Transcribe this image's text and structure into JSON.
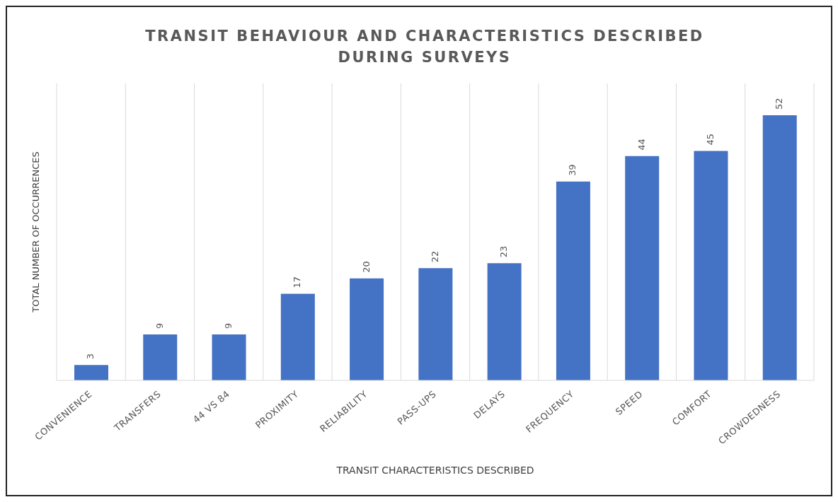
{
  "chart_data": {
    "type": "bar",
    "title": "TRANSIT BEHAVIOUR AND CHARACTERISTICS DESCRIBED DURING SURVEYS",
    "xlabel": "TRANSIT CHARACTERISTICS DESCRIBED",
    "ylabel": "TOTAL NUMBER OF OCCURRENCES",
    "categories": [
      "CONVENIENCE",
      "TRANSFERS",
      "44 VS 84",
      "PROXIMITY",
      "RELIABILITY",
      "PASS-UPS",
      "DELAYS",
      "FREQUENCY",
      "SPEED",
      "COMFORT",
      "CROWDEDNESS"
    ],
    "values": [
      3,
      9,
      9,
      17,
      20,
      22,
      23,
      39,
      44,
      45,
      52
    ],
    "color": "#4472c4",
    "data_labels": true,
    "grid": "x"
  }
}
